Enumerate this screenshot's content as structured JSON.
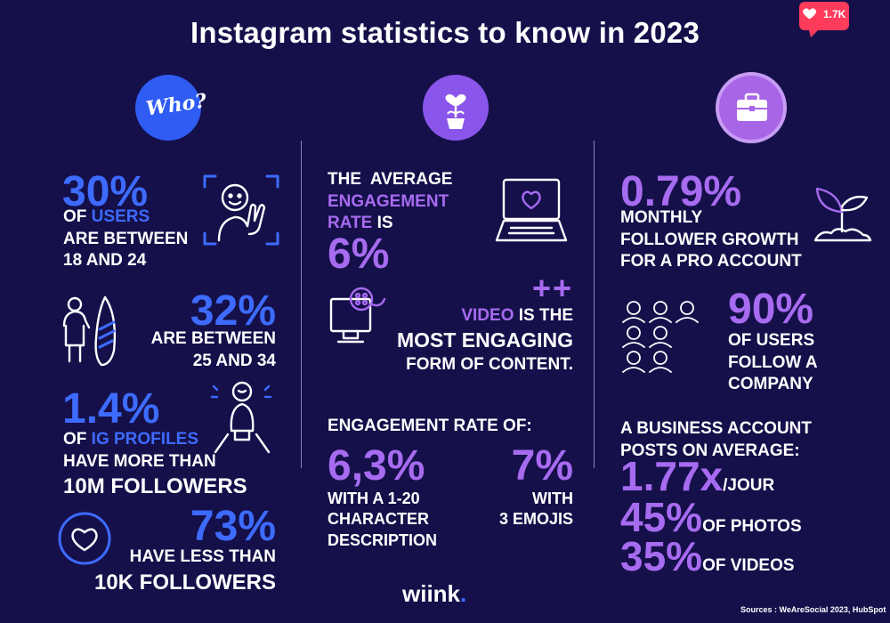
{
  "title": "Instagram statistics to know in 2023",
  "badge": {
    "count": "1.7K",
    "icon": "heart-icon",
    "color": "#ff3b5c"
  },
  "colors": {
    "background": "#15104a",
    "blue": "#3d6bff",
    "purple": "#a76bf0",
    "text": "#ffffff"
  },
  "who_icon_text": "Who?",
  "col1": {
    "s1": {
      "value": "30%",
      "line1_pre": "OF ",
      "line1_hl": "USERS",
      "line2": "ARE BETWEEN",
      "line3": "18 AND 24"
    },
    "s2": {
      "value": "32%",
      "line1": "ARE BETWEEN",
      "line2": "25 AND 34"
    },
    "s3": {
      "value": "1.4%",
      "line1_pre": "OF ",
      "line1_hl": "IG PROFILES",
      "line2": "HAVE MORE THAN",
      "line3": "10M FOLLOWERS"
    },
    "s4": {
      "value": "73%",
      "line1": "HAVE LESS THAN",
      "line2": "10K FOLLOWERS"
    }
  },
  "col2": {
    "s1": {
      "line1": "THE  AVERAGE",
      "line2_hl": "ENGAGEMENT",
      "line3_hl": "RATE",
      "line3_post": " IS",
      "value": "6%"
    },
    "s2": {
      "plus": "++",
      "line1_hl": "VIDEO",
      "line1_post": " IS THE",
      "line2": "MOST ENGAGING",
      "line3": "FORM OF CONTENT."
    },
    "s3": {
      "heading": "ENGAGEMENT RATE OF:",
      "a_value": "6,3%",
      "a_line1": "WITH A 1-20",
      "a_line2": "CHARACTER",
      "a_line3": "DESCRIPTION",
      "b_value": "7%",
      "b_line1": "WITH",
      "b_line2": "3 EMOJIS"
    }
  },
  "col3": {
    "s1": {
      "value": "0.79%",
      "line1": "MONTHLY",
      "line2": "FOLLOWER GROWTH",
      "line3": "FOR A PRO ACCOUNT"
    },
    "s2": {
      "value": "90%",
      "line1": "OF USERS",
      "line2": "FOLLOW A",
      "line3": "COMPANY"
    },
    "s3": {
      "line1": "A BUSINESS ACCOUNT",
      "line2": "POSTS ON AVERAGE:",
      "v1": "1.77x",
      "v1_label": "/JOUR",
      "v2": "45%",
      "v2_label": "OF PHOTOS",
      "v3": "35%",
      "v3_label": "OF VIDEOS"
    }
  },
  "logo": {
    "text": "wiink",
    "dot": "."
  },
  "sources": "Sources : WeAreSocial 2023, HubSpot"
}
